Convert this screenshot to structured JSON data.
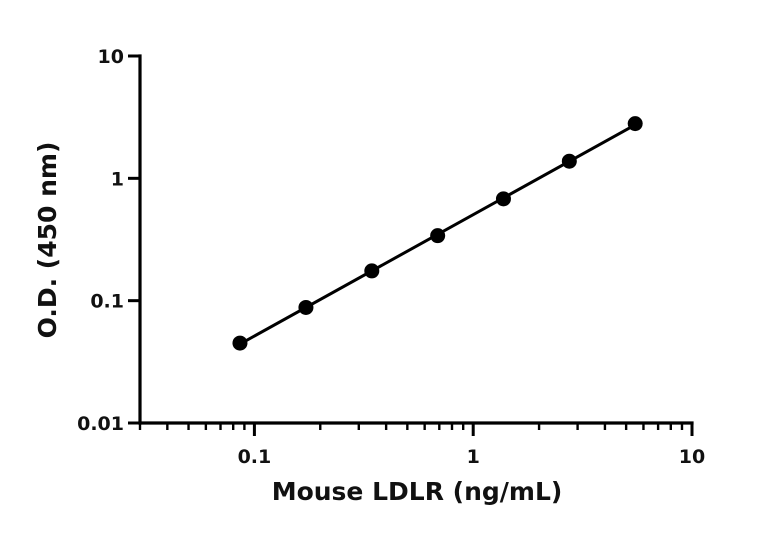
{
  "chart_data": {
    "type": "scatter",
    "title": "",
    "xlabel": "Mouse LDLR (ng/mL)",
    "ylabel": "O.D. (450 nm)",
    "xscale": "log",
    "yscale": "log",
    "xlim": [
      0.03,
      10
    ],
    "ylim": [
      0.01,
      10
    ],
    "grid": false,
    "legend": "none",
    "x_ticks": [
      {
        "value": 0.1,
        "label": "0.1"
      },
      {
        "value": 1,
        "label": "1"
      },
      {
        "value": 10,
        "label": "10"
      }
    ],
    "y_ticks": [
      {
        "value": 0.01,
        "label": "0.01"
      },
      {
        "value": 0.1,
        "label": "0.1"
      },
      {
        "value": 1,
        "label": "1"
      },
      {
        "value": 10,
        "label": "10"
      }
    ],
    "series": [
      {
        "x": [
          0.0859,
          0.172,
          0.344,
          0.688,
          1.375,
          2.75,
          5.5
        ],
        "y": [
          0.045,
          0.088,
          0.175,
          0.34,
          0.68,
          1.38,
          2.8
        ],
        "fit_line": true,
        "color": "#000000"
      }
    ]
  }
}
